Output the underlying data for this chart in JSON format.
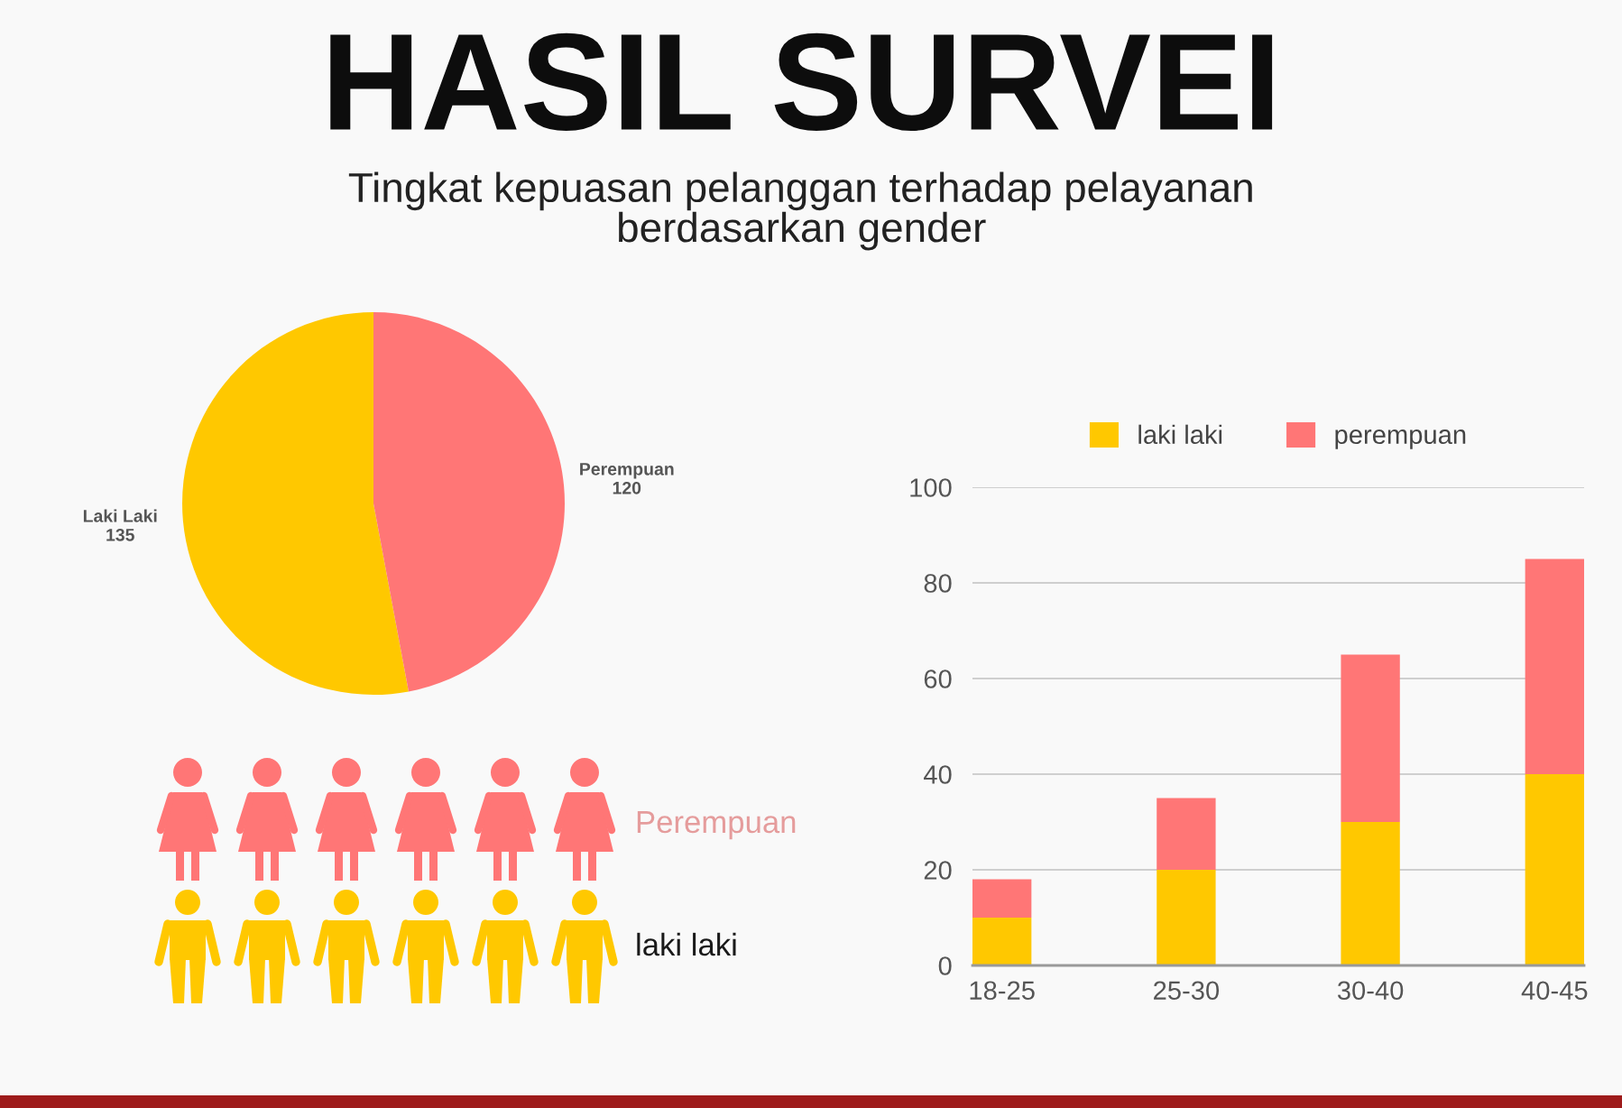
{
  "chart_data": [
    {
      "type": "pie",
      "title": "HASIL SURVEI",
      "subtitle": "Tingkat kepuasan pelanggan terhadap pelayanan\nberdasarkan gender",
      "categories": [
        "Laki Laki",
        "Perempuan"
      ],
      "values": [
        135,
        120
      ],
      "colors": [
        "#ffc800",
        "#ff7676"
      ],
      "data_labels": true
    },
    {
      "type": "other",
      "annotations": [
        "Perempuan",
        "laki laki"
      ],
      "colors": [
        "#ff7676",
        "#ffc800"
      ]
    },
    {
      "type": "bar",
      "categories": [
        "18-25",
        "25-30",
        "30-40",
        "40-45"
      ],
      "stacked": true,
      "series": [
        {
          "name": "laki laki",
          "color": "#ffc800",
          "values": [
            10,
            20,
            30,
            40
          ]
        },
        {
          "name": "perempuan",
          "color": "#ff7676",
          "values": [
            8,
            15,
            35,
            45
          ]
        }
      ],
      "ylim": [
        0,
        100
      ],
      "yticks": [
        0,
        20,
        40,
        60,
        80,
        100
      ],
      "grid": "y",
      "legend": "top"
    }
  ]
}
